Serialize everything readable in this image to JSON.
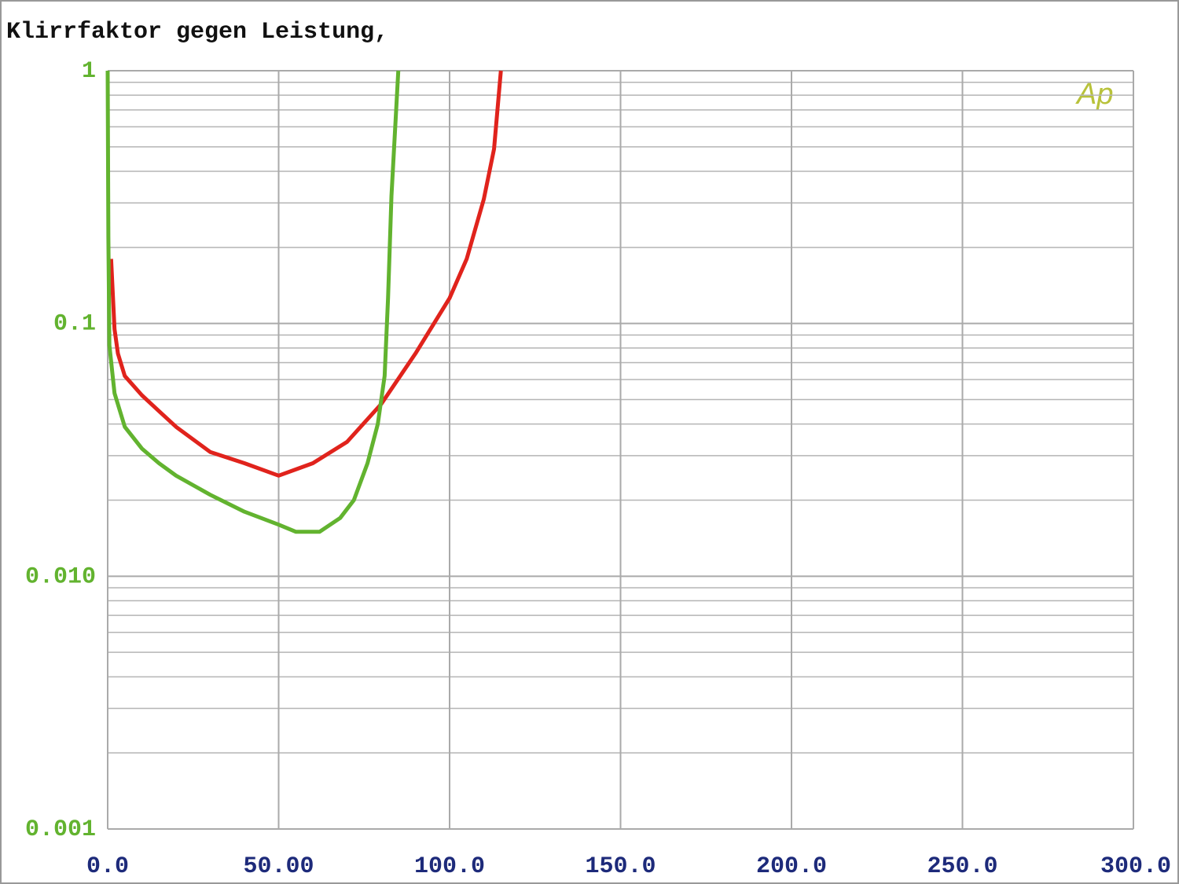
{
  "chart_data": {
    "type": "line",
    "title": "Klirrfaktor gegen Leistung,",
    "annotation": "Ap",
    "ylog": true,
    "grid": true,
    "ylim": [
      0.001,
      1
    ],
    "yticks": [
      0.001,
      {
        "value": 0.01,
        "label": "0.010"
      },
      0.1,
      1
    ],
    "xlim": [
      0,
      300
    ],
    "xticks": [
      {
        "value": 0,
        "label": "0.0"
      },
      {
        "value": 50,
        "label": "50.00"
      },
      {
        "value": 100,
        "label": "100.0"
      },
      {
        "value": 150,
        "label": "150.0"
      },
      {
        "value": 200,
        "label": "200.0"
      },
      {
        "value": 250,
        "label": "250.0"
      },
      {
        "value": 300,
        "label": "300.0"
      }
    ],
    "series": [
      {
        "color": "#e0231c",
        "x": [
          1,
          2,
          3,
          5,
          10,
          15,
          20,
          30,
          40,
          50,
          60,
          70,
          80,
          90,
          100,
          105,
          110,
          113,
          115
        ],
        "values": [
          0.18,
          0.095,
          0.076,
          0.062,
          0.052,
          0.045,
          0.039,
          0.031,
          0.028,
          0.025,
          0.028,
          0.034,
          0.048,
          0.076,
          0.126,
          0.18,
          0.31,
          0.49,
          1
        ]
      },
      {
        "color": "#62b32f",
        "x": [
          0,
          0.2,
          0.5,
          2,
          5,
          10,
          15,
          20,
          30,
          40,
          50,
          55,
          62,
          68,
          72,
          76,
          79,
          81,
          82,
          83,
          85
        ],
        "values": [
          1,
          0.22,
          0.082,
          0.053,
          0.039,
          0.032,
          0.028,
          0.025,
          0.021,
          0.018,
          0.016,
          0.015,
          0.015,
          0.017,
          0.02,
          0.028,
          0.04,
          0.062,
          0.126,
          0.32,
          1
        ]
      }
    ]
  }
}
